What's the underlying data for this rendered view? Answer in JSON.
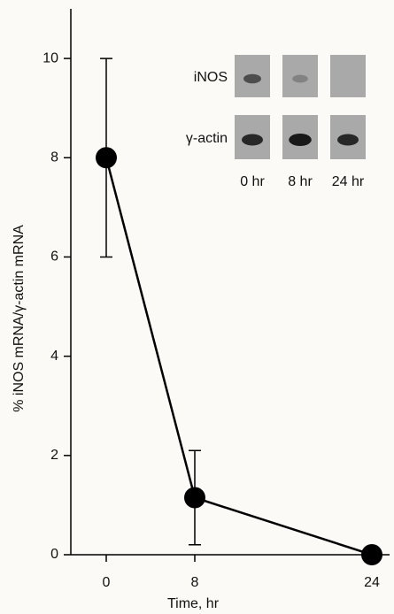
{
  "chart_data": {
    "type": "line",
    "x_label": "Time, hr",
    "y_label": "% iNOS mRNA/γ-actin mRNA",
    "x": [
      0,
      8,
      24
    ],
    "series": [
      {
        "color": "#000000",
        "values": [
          8.0,
          1.15,
          0
        ],
        "errors": [
          2,
          0.95,
          null
        ]
      }
    ],
    "xlim": [
      -3.2,
      25.6
    ],
    "xticks": [
      0,
      8,
      24
    ],
    "ylim": [
      0,
      11
    ],
    "yticks": [
      0,
      2,
      4,
      6,
      8,
      10
    ],
    "grid": false,
    "inset": {
      "rows": [
        "iNOS",
        "γ-actin"
      ],
      "columns": [
        "0 hr",
        "8 hr",
        "24 hr"
      ]
    }
  }
}
